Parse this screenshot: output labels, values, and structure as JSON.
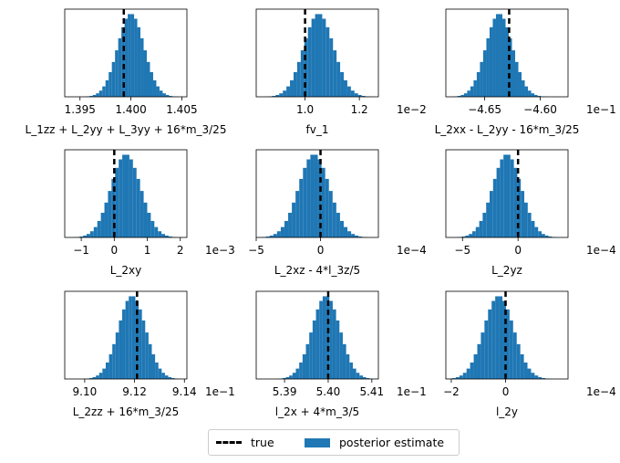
{
  "colors": {
    "hist": "#1f77b4",
    "true_line": "#000000"
  },
  "legend": {
    "true_label": "true",
    "posterior_label": "posterior estimate",
    "placement": "bottom-center"
  },
  "chart_data": [
    {
      "type": "histogram",
      "xlabel": "L_1zz + L_2yy + L_3yy + 16*m_3/25",
      "xlim": [
        1.3935,
        1.4055
      ],
      "ticks": [
        1.395,
        1.4,
        1.405
      ],
      "tick_labels": [
        "1.395",
        "1.400",
        "1.405"
      ],
      "offset": "",
      "true_value": 1.3993,
      "mean": 1.4,
      "sd": 0.0013
    },
    {
      "type": "histogram",
      "xlabel": "fv_1",
      "xlim": [
        0.82,
        1.27
      ],
      "ticks": [
        1.0,
        1.2
      ],
      "tick_labels": [
        "1.0",
        "1.2"
      ],
      "offset": "1e−2",
      "true_value": 1.0,
      "mean": 1.05,
      "sd": 0.055
    },
    {
      "type": "histogram",
      "xlabel": "L_2xx - L_2yy - 16*m_3/25",
      "xlim": [
        -4.685,
        -4.575
      ],
      "ticks": [
        -4.65,
        -4.6
      ],
      "tick_labels": [
        "−4.65",
        "−4.60"
      ],
      "offset": "1e−1",
      "true_value": -4.628,
      "mean": -4.637,
      "sd": 0.012
    },
    {
      "type": "histogram",
      "xlabel": "L_2xy",
      "xlim": [
        -1.5,
        2.2
      ],
      "ticks": [
        -1,
        0,
        1,
        2
      ],
      "tick_labels": [
        "−1",
        "0",
        "1",
        "2"
      ],
      "offset": "1e−3",
      "true_value": 0.0,
      "mean": 0.35,
      "sd": 0.45
    },
    {
      "type": "histogram",
      "xlabel": "L_2xz - 4*l_3z/5",
      "xlim": [
        -5.0,
        4.5
      ],
      "ticks": [
        -5,
        0
      ],
      "tick_labels": [
        "−5",
        "0"
      ],
      "offset": "1e−4",
      "true_value": 0.0,
      "mean": -0.5,
      "sd": 1.2
    },
    {
      "type": "histogram",
      "xlabel": "L_2yz",
      "xlim": [
        -6.5,
        4.5
      ],
      "ticks": [
        -5,
        0
      ],
      "tick_labels": [
        "−5",
        "0"
      ],
      "offset": "1e−4",
      "true_value": 0.0,
      "mean": -1.0,
      "sd": 1.3
    },
    {
      "type": "histogram",
      "xlabel": "L_2zz + 16*m_3/25",
      "xlim": [
        9.092,
        9.141
      ],
      "ticks": [
        9.1,
        9.12,
        9.14
      ],
      "tick_labels": [
        "9.10",
        "9.12",
        "9.14"
      ],
      "offset": "1e−1",
      "true_value": 9.121,
      "mean": 9.119,
      "sd": 0.0055
    },
    {
      "type": "histogram",
      "xlabel": "l_2x + 4*m_3/5",
      "xlim": [
        5.3835,
        5.4115
      ],
      "ticks": [
        5.39,
        5.4,
        5.41
      ],
      "tick_labels": [
        "5.39",
        "5.40",
        "5.41"
      ],
      "offset": "1e−1",
      "true_value": 5.4,
      "mean": 5.3995,
      "sd": 0.0032
    },
    {
      "type": "histogram",
      "xlabel": "l_2y",
      "xlim": [
        -2.2,
        2.3
      ],
      "ticks": [
        -2,
        0
      ],
      "tick_labels": [
        "−2",
        "0"
      ],
      "offset": "1e−4",
      "true_value": 0.0,
      "mean": -0.25,
      "sd": 0.55
    }
  ]
}
